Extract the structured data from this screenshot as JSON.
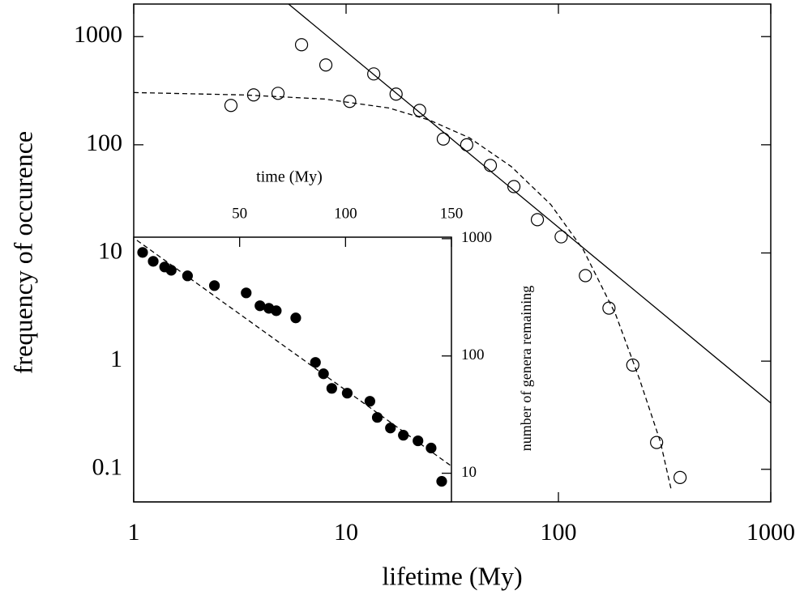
{
  "chart_data": [
    {
      "type": "scatter",
      "x_label": "lifetime (My)",
      "y_label": "frequency of occurence",
      "log_x": true,
      "log_y": true,
      "xlim": [
        1,
        1000
      ],
      "ylim": [
        0.05,
        2000
      ],
      "xticks": [
        1,
        10,
        100,
        1000
      ],
      "yticks": [
        0.1,
        1,
        10,
        100,
        1000
      ],
      "x_axis": "bottom",
      "y_axis": "left",
      "mirror_ticks": true,
      "series": [
        {
          "color": "#000000",
          "marker": "open",
          "x": [
            2.87,
            3.67,
            4.78,
            6.17,
            8.03,
            10.4,
            13.5,
            17.2,
            22.2,
            28.7,
            37.0,
            47.8,
            61.7,
            79.6,
            103,
            134,
            173,
            224,
            290,
            374
          ],
          "values": [
            231,
            289,
            299,
            841,
            547,
            252,
            452,
            294,
            208,
            113,
            100,
            64.4,
            41.1,
            20.3,
            14.1,
            6.17,
            3.09,
            0.92,
            0.177,
            0.084
          ]
        },
        {
          "color": "#000000",
          "line": "solid",
          "x": [
            5.36,
            1000
          ],
          "values": [
            2000,
            0.41
          ]
        },
        {
          "color": "#000000",
          "line": "dashed",
          "x": [
            1,
            3.27,
            7.89,
            15.9,
            24.7,
            38.1,
            59.9,
            92.1,
            131,
            186,
            241,
            302,
            339
          ],
          "values": [
            304,
            289,
            265,
            219,
            169,
            116,
            63,
            28,
            10.7,
            2.7,
            0.68,
            0.18,
            0.066
          ]
        }
      ]
    },
    {
      "type": "scatter",
      "x_label": "time (My)",
      "y_label": "number of genera remaining",
      "log_x": false,
      "log_y": true,
      "xlim": [
        0,
        150
      ],
      "ylim": [
        5.7,
        1030
      ],
      "xticks": [
        50,
        100,
        150
      ],
      "yticks": [
        10,
        100,
        1000
      ],
      "x_axis": "top",
      "y_axis": "right",
      "mirror_ticks": false,
      "series": [
        {
          "color": "#000000",
          "marker": "filled",
          "x": [
            4.2,
            9.2,
            14.6,
            17.7,
            25.4,
            38.1,
            53.1,
            59.6,
            63.8,
            67.3,
            76.5,
            85.8,
            89.6,
            93.5,
            100.8,
            111.5,
            115,
            121.2,
            127.3,
            134.2,
            140.4,
            145.4
          ],
          "values": [
            763,
            641,
            574,
            538,
            482,
            398,
            345,
            268,
            255,
            243,
            211,
            88.1,
            70.5,
            52.9,
            48.2,
            41.1,
            29.9,
            24.3,
            21.1,
            18.9,
            16.4,
            8.53
          ]
        },
        {
          "color": "#000000",
          "line": "dashed",
          "x": [
            1.5,
            150
          ],
          "values": [
            969,
            11.5
          ]
        }
      ]
    }
  ]
}
